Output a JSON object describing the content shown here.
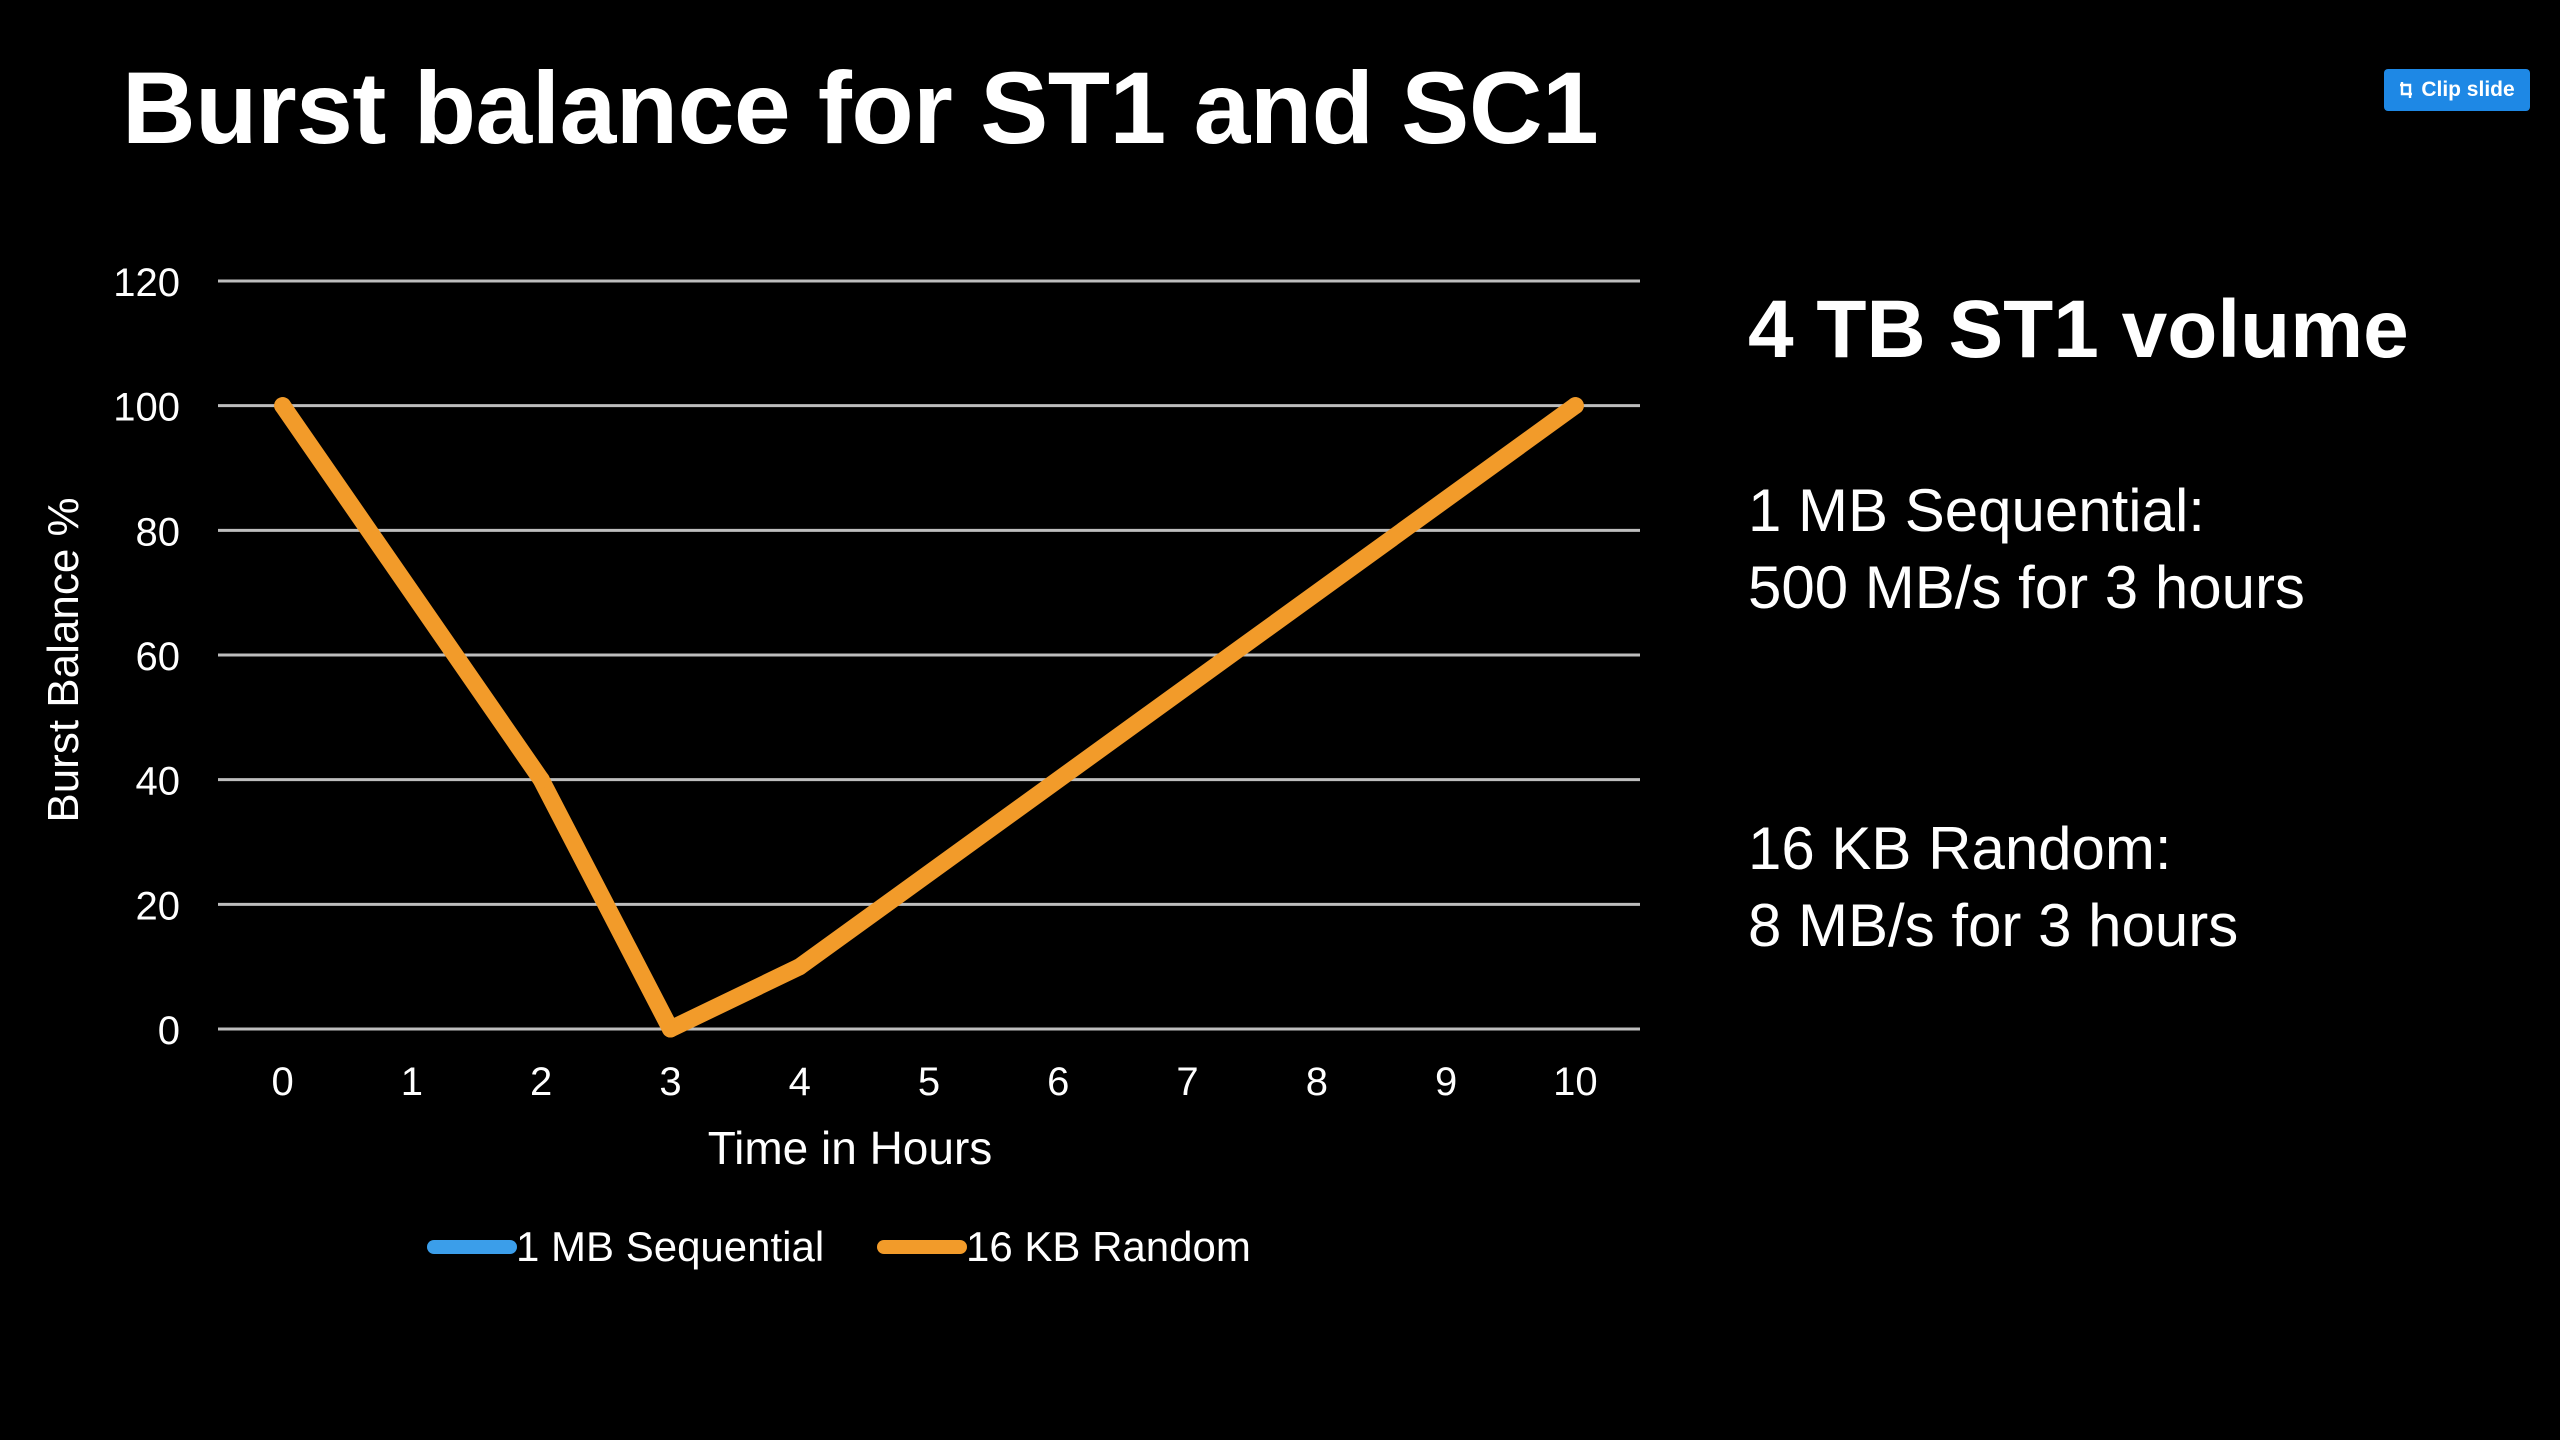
{
  "slide": {
    "title": "Burst balance for ST1 and SC1",
    "clip_button_label": "Clip slide"
  },
  "side_panel": {
    "heading": "4 TB ST1 volume",
    "blocks": [
      {
        "line1": "1 MB Sequential:",
        "line2": "500 MB/s for 3 hours"
      },
      {
        "line1": "16 KB Random:",
        "line2": "8 MB/s for 3 hours"
      }
    ]
  },
  "chart_data": {
    "type": "line",
    "title": "",
    "xlabel": "Time in Hours",
    "ylabel": "Burst Balance %",
    "x": [
      0,
      1,
      2,
      3,
      4,
      5,
      6,
      7,
      8,
      9,
      10
    ],
    "x_tick_labels": [
      "0",
      "1",
      "2",
      "3",
      "4",
      "5",
      "6",
      "7",
      "8",
      "9",
      "10"
    ],
    "y_tick_labels": [
      "0",
      "20",
      "40",
      "60",
      "80",
      "100",
      "120"
    ],
    "xlim": [
      -0.5,
      10.5
    ],
    "ylim": [
      0,
      120
    ],
    "y_ticks": [
      0,
      20,
      40,
      60,
      80,
      100,
      120
    ],
    "grid": true,
    "legend_position": "bottom-center",
    "series": [
      {
        "name": "1 MB Sequential",
        "color": "#3b9eea",
        "x": [],
        "values": []
      },
      {
        "name": "16 KB Random",
        "color": "#f29b2a",
        "x": [
          0,
          2,
          3,
          4,
          10
        ],
        "values": [
          100,
          40,
          0,
          10,
          100
        ]
      }
    ],
    "gridline_color": "#bdbdbd"
  }
}
